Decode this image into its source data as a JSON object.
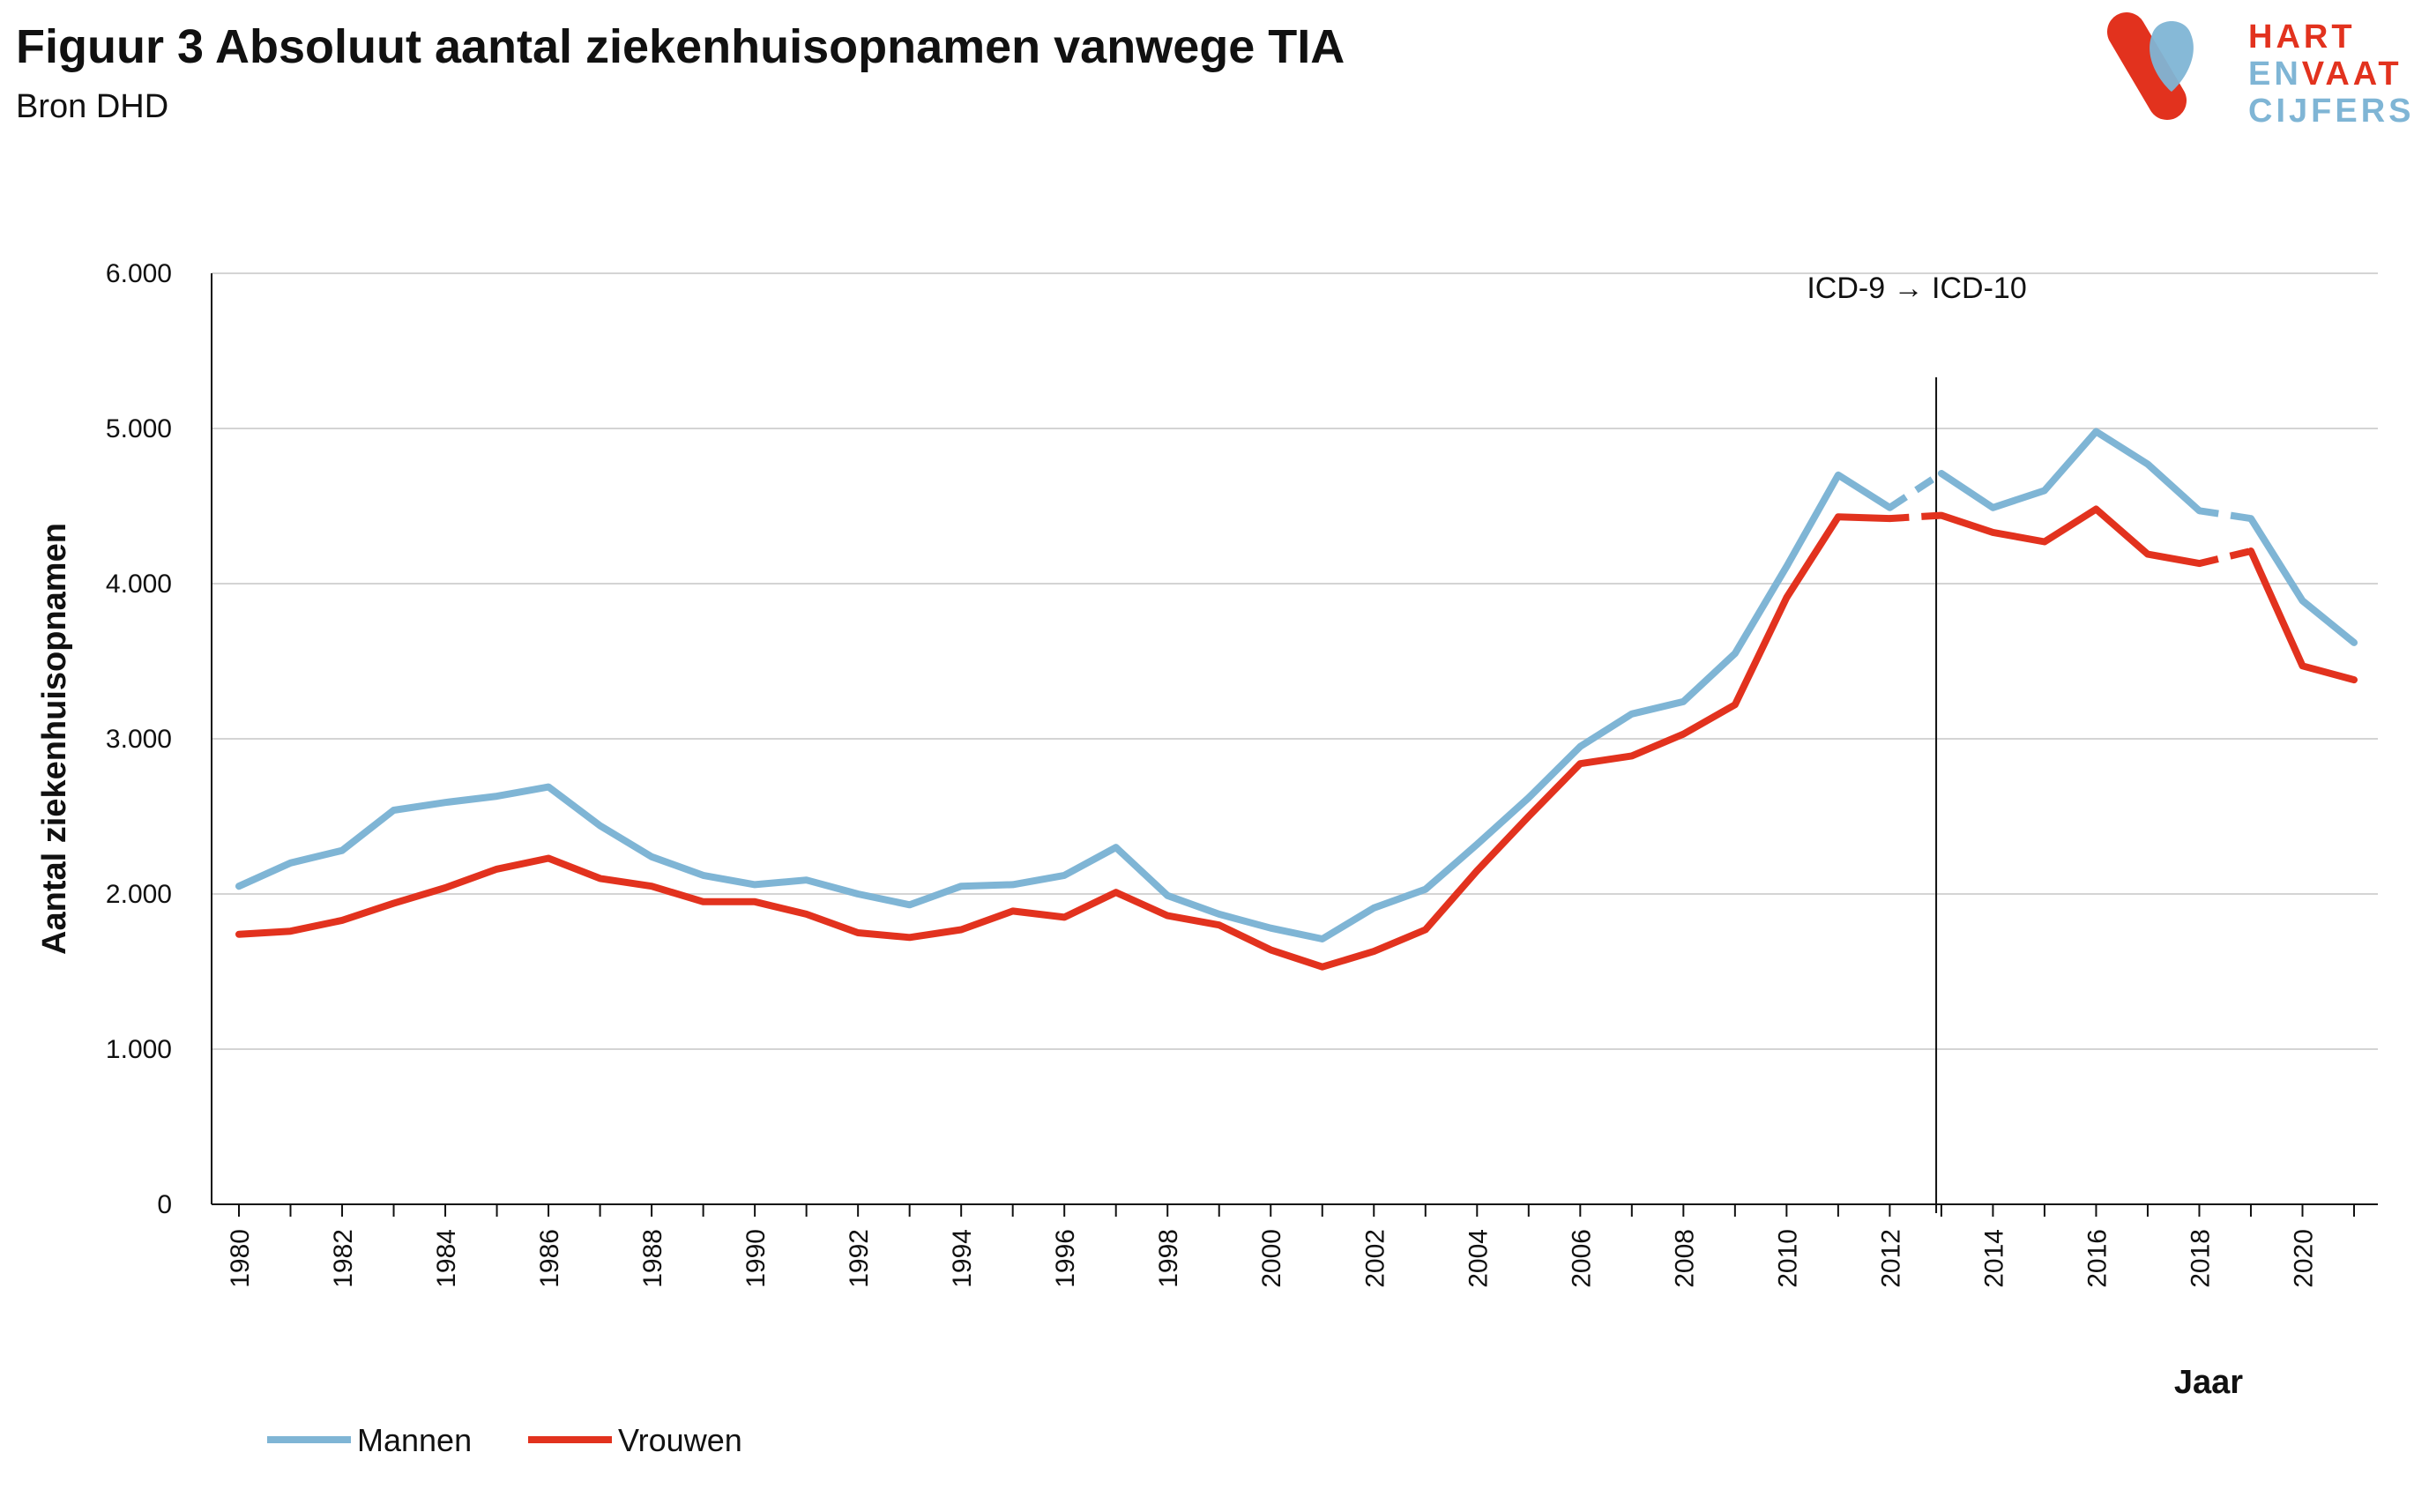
{
  "header": {
    "title": "Figuur 3 Absoluut aantal ziekenhuisopnamen vanwege TIA",
    "source": "Bron DHD"
  },
  "logo": {
    "line1": "HART",
    "line2a": "EN",
    "line2b": "VAAT",
    "line3": "CIJFERS",
    "colors": {
      "red": "#e2321e",
      "blue": "#7fb5d5"
    }
  },
  "chart_data": {
    "type": "line",
    "title": "",
    "xlabel": "Jaar",
    "ylabel": "Aantal ziekenhuisopnamen",
    "ylim": [
      0,
      6000
    ],
    "yticks": [
      0,
      1000,
      2000,
      3000,
      4000,
      5000,
      6000
    ],
    "ytick_labels": [
      "0",
      "1.000",
      "2.000",
      "3.000",
      "4.000",
      "5.000",
      "6.000"
    ],
    "x": [
      1980,
      1981,
      1982,
      1983,
      1984,
      1985,
      1986,
      1987,
      1988,
      1989,
      1990,
      1991,
      1992,
      1993,
      1994,
      1995,
      1996,
      1997,
      1998,
      1999,
      2000,
      2001,
      2002,
      2003,
      2004,
      2005,
      2006,
      2007,
      2008,
      2009,
      2010,
      2011,
      2012,
      2013,
      2014,
      2015,
      2016,
      2017,
      2018,
      2019,
      2020,
      2021
    ],
    "xtick_labels": [
      "1980",
      "1982",
      "1984",
      "1986",
      "1988",
      "1990",
      "1992",
      "1994",
      "1996",
      "1998",
      "2000",
      "2002",
      "2004",
      "2006",
      "2008",
      "2010",
      "2012",
      "2014",
      "2016",
      "2018",
      "2020"
    ],
    "grid": "horizontal",
    "legend_position": "bottom-left",
    "series": [
      {
        "name": "Mannen",
        "color": "#7fb5d5",
        "values": [
          2050,
          2200,
          2280,
          2540,
          2590,
          2630,
          2690,
          2440,
          2240,
          2120,
          2060,
          2090,
          2000,
          1930,
          2050,
          2060,
          2120,
          2300,
          1990,
          1870,
          1780,
          1710,
          1910,
          2030,
          2320,
          2620,
          2950,
          3160,
          3240,
          3550,
          4110,
          4700,
          4490,
          4710,
          4490,
          4600,
          4980,
          4770,
          4470,
          4420,
          3890,
          3620
        ]
      },
      {
        "name": "Vrouwen",
        "color": "#e2321e",
        "values": [
          1740,
          1760,
          1830,
          1940,
          2040,
          2160,
          2230,
          2100,
          2050,
          1950,
          1950,
          1870,
          1750,
          1720,
          1770,
          1890,
          1850,
          2010,
          1860,
          1800,
          1640,
          1530,
          1630,
          1770,
          2150,
          2500,
          2840,
          2890,
          3030,
          3220,
          3910,
          4430,
          4420,
          4440,
          4330,
          4270,
          4480,
          4190,
          4130,
          4210,
          3470,
          3380
        ]
      }
    ],
    "dashed_segments": [
      [
        2012,
        2013
      ],
      [
        2018,
        2019
      ]
    ],
    "annotation": {
      "text": "ICD-9 → ICD-10",
      "x": 2012.9
    }
  }
}
